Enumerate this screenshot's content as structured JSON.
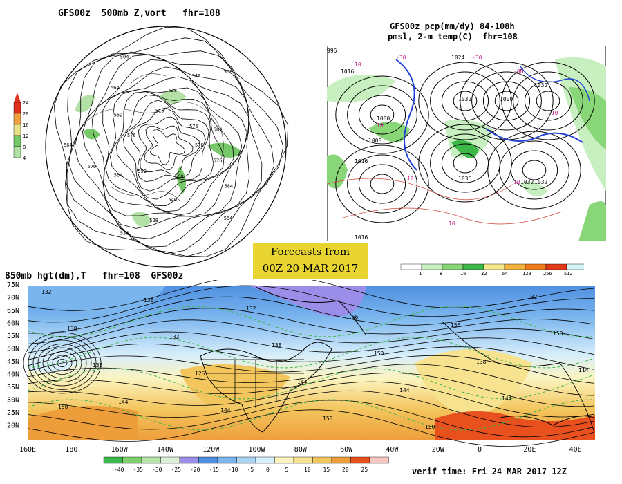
{
  "panel_500mb": {
    "title": "GFS00z  500mb Z,vort   fhr=108",
    "colorbar_ticks": [
      "24",
      "20",
      "16",
      "12",
      "8",
      "4"
    ],
    "colorbar_colors": [
      "#e0301e",
      "#f1a040",
      "#e7e28a",
      "#76c868",
      "#b3e1a5"
    ],
    "contour_labels": [
      "576",
      "576",
      "584",
      "564",
      "560",
      "540",
      "528",
      "536",
      "552",
      "564",
      "576",
      "564",
      "576",
      "552",
      "564",
      "504",
      "516",
      "528",
      "540",
      "568",
      "576",
      "584"
    ]
  },
  "panel_pcp": {
    "title_line1": "GFS00z pcp(mm/dy) 84-108h",
    "title_line2": "pmsl, 2-m temp(C)  fhr=108",
    "pressure_labels": [
      "1016",
      "1000",
      "1008",
      "1016",
      "1024",
      "1032",
      "1000",
      "1032",
      "1032",
      "1036",
      "1032",
      "1016",
      "996"
    ],
    "temp_labels": [
      "10",
      "10",
      "10",
      "10",
      "10",
      "-30",
      "-30",
      "-30",
      "-10"
    ],
    "colorbar_ticks": [
      "1",
      "8",
      "16",
      "32",
      "64",
      "128",
      "256",
      "512"
    ],
    "colorbar_colors": [
      "#ffffff",
      "#c7efc0",
      "#88d678",
      "#3cb748",
      "#f4e88c",
      "#f1b23e",
      "#f07a1c",
      "#e23a18",
      "#d4f4f5"
    ]
  },
  "forecast_box": {
    "line1": "Forecasts from",
    "line2": "00Z 20 MAR 2017"
  },
  "panel_850mb": {
    "title": "850mb hgt(dm),T   fhr=108  GFS00z",
    "lat_labels": [
      "75N",
      "70N",
      "65N",
      "60N",
      "55N",
      "50N",
      "45N",
      "40N",
      "35N",
      "30N",
      "25N",
      "20N"
    ],
    "lon_labels": [
      "160E",
      "180",
      "160W",
      "140W",
      "120W",
      "100W",
      "80W",
      "60W",
      "40W",
      "20W",
      "0",
      "20E",
      "40E"
    ],
    "height_labels": [
      "132",
      "138",
      "138",
      "144",
      "138",
      "132",
      "126",
      "144",
      "132",
      "138",
      "144",
      "150",
      "156",
      "150",
      "144",
      "150",
      "156",
      "138",
      "144",
      "132",
      "150",
      "114",
      "150"
    ],
    "temp_colorbar_ticks": [
      "-40",
      "-35",
      "-30",
      "-25",
      "-20",
      "-15",
      "-10",
      "-5",
      "0",
      "5",
      "10",
      "15",
      "20",
      "25"
    ],
    "temp_colorbar_colors": [
      "#3bb84a",
      "#7ed06f",
      "#b7e5a8",
      "#dcefd7",
      "#9a8ee8",
      "#4f8fe0",
      "#7ab5ee",
      "#a9d4f2",
      "#d7eefb",
      "#fbf4c0",
      "#f7e38f",
      "#f3c55d",
      "#ee9d3b",
      "#e8501e",
      "#f6c6c0"
    ],
    "verif_time": "verif time: Fri 24 MAR 2017 12Z"
  }
}
